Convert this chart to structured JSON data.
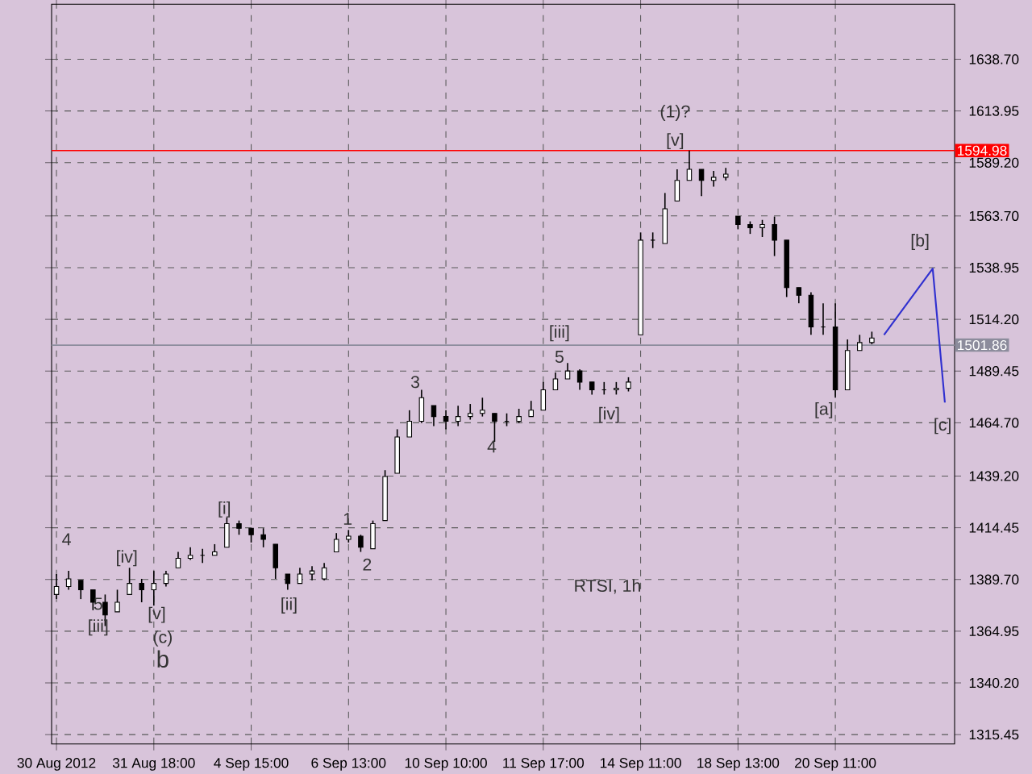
{
  "chart_data": {
    "type": "candlestick",
    "categories": [
      "30 Aug 2012",
      null,
      null,
      null,
      null,
      null,
      null,
      null,
      "31 Aug 18:00",
      null,
      null,
      null,
      null,
      null,
      null,
      null,
      "4 Sep 15:00",
      null,
      null,
      null,
      null,
      null,
      null,
      null,
      "6 Sep 13:00",
      null,
      null,
      null,
      null,
      null,
      null,
      null,
      "10 Sep 10:00",
      null,
      null,
      null,
      null,
      null,
      null,
      null,
      "11 Sep 17:00",
      null,
      null,
      null,
      null,
      null,
      null,
      null,
      "14 Sep 11:00",
      null,
      null,
      null,
      null,
      null,
      null,
      null,
      "18 Sep 13:00",
      null,
      null,
      null,
      null,
      null,
      null,
      null,
      "20 Sep 11:00",
      null,
      null,
      null,
      null,
      null,
      null,
      null,
      null,
      null
    ],
    "ohlc": [
      [
        1382.5,
        1392.3,
        1380.3,
        1386.3
      ],
      [
        1386.3,
        1393.8,
        1384.8,
        1390.0
      ],
      [
        1389.3,
        1389.3,
        1380.3,
        1384.8
      ],
      [
        1384.8,
        1384.8,
        1375.0,
        1378.8
      ],
      [
        1378.8,
        1382.5,
        1367.4,
        1372.7
      ],
      [
        1374.2,
        1384.8,
        1374.2,
        1378.8
      ],
      [
        1382.5,
        1395.3,
        1382.5,
        1387.8
      ],
      [
        1387.8,
        1390.0,
        1378.8,
        1384.8
      ],
      [
        1384.8,
        1393.8,
        1377.2,
        1387.8
      ],
      [
        1387.8,
        1393.8,
        1386.3,
        1392.3
      ],
      [
        1395.3,
        1402.9,
        1395.3,
        1399.8
      ],
      [
        1399.8,
        1405.1,
        1399.1,
        1401.3
      ],
      [
        1401.3,
        1404.4,
        1397.6,
        1401.3
      ],
      [
        1401.3,
        1406.6,
        1401.3,
        1402.9
      ],
      [
        1405.1,
        1419.4,
        1405.1,
        1416.4
      ],
      [
        1416.4,
        1417.9,
        1411.1,
        1414.2
      ],
      [
        1414.2,
        1414.2,
        1407.4,
        1411.1
      ],
      [
        1411.1,
        1414.2,
        1405.1,
        1408.9
      ],
      [
        1406.6,
        1406.6,
        1390.0,
        1395.3
      ],
      [
        1392.3,
        1392.3,
        1384.8,
        1387.8
      ],
      [
        1387.8,
        1395.3,
        1387.8,
        1392.3
      ],
      [
        1392.3,
        1396.1,
        1389.3,
        1393.8
      ],
      [
        1390.0,
        1397.6,
        1389.3,
        1395.3
      ],
      [
        1402.9,
        1411.9,
        1402.9,
        1408.9
      ],
      [
        1408.9,
        1413.4,
        1407.4,
        1410.4
      ],
      [
        1410.4,
        1411.1,
        1402.9,
        1405.1
      ],
      [
        1404.4,
        1417.9,
        1404.4,
        1416.4
      ],
      [
        1417.9,
        1442.0,
        1417.9,
        1439.0
      ],
      [
        1440.5,
        1461.6,
        1440.5,
        1457.9
      ],
      [
        1457.9,
        1470.7,
        1457.9,
        1465.4
      ],
      [
        1465.4,
        1480.5,
        1464.6,
        1476.7
      ],
      [
        1472.9,
        1472.9,
        1463.1,
        1467.7
      ],
      [
        1467.7,
        1470.7,
        1461.6,
        1465.4
      ],
      [
        1465.4,
        1472.9,
        1463.1,
        1467.7
      ],
      [
        1467.7,
        1473.7,
        1466.2,
        1469.2
      ],
      [
        1469.2,
        1476.7,
        1467.7,
        1470.7
      ],
      [
        1469.2,
        1469.2,
        1455.6,
        1465.4
      ],
      [
        1465.4,
        1469.2,
        1463.1,
        1465.4
      ],
      [
        1465.4,
        1471.4,
        1464.6,
        1467.7
      ],
      [
        1467.7,
        1475.2,
        1467.7,
        1470.7
      ],
      [
        1470.7,
        1484.2,
        1470.7,
        1480.5
      ],
      [
        1480.5,
        1488.8,
        1480.5,
        1485.7
      ],
      [
        1485.7,
        1493.3,
        1485.7,
        1489.5
      ],
      [
        1489.5,
        1490.3,
        1480.5,
        1484.2
      ],
      [
        1484.2,
        1484.2,
        1478.2,
        1480.5
      ],
      [
        1480.5,
        1484.2,
        1478.2,
        1480.5
      ],
      [
        1480.5,
        1484.2,
        1478.2,
        1481.2
      ],
      [
        1481.2,
        1486.5,
        1479.7,
        1484.2
      ],
      [
        1506.8,
        1555.8,
        1506.8,
        1552.1
      ],
      [
        1552.1,
        1555.8,
        1548.3,
        1552.1
      ],
      [
        1550.5,
        1574.7,
        1550.5,
        1567.1
      ],
      [
        1570.9,
        1586.0,
        1570.9,
        1580.7
      ],
      [
        1580.7,
        1595.0,
        1580.7,
        1586.0
      ],
      [
        1586.0,
        1586.0,
        1573.2,
        1580.7
      ],
      [
        1580.7,
        1585.2,
        1577.7,
        1582.2
      ],
      [
        1582.2,
        1586.7,
        1580.7,
        1583.7
      ],
      [
        1563.4,
        1563.4,
        1557.3,
        1559.6
      ],
      [
        1559.6,
        1561.1,
        1555.1,
        1558.1
      ],
      [
        1558.1,
        1561.8,
        1553.6,
        1559.6
      ],
      [
        1559.6,
        1563.4,
        1544.5,
        1552.1
      ],
      [
        1552.1,
        1552.1,
        1524.9,
        1529.4
      ],
      [
        1529.4,
        1529.4,
        1521.9,
        1525.7
      ],
      [
        1525.7,
        1527.2,
        1506.8,
        1510.6
      ],
      [
        1510.6,
        1521.9,
        1506.8,
        1510.6
      ],
      [
        1510.6,
        1521.9,
        1476.7,
        1480.5
      ],
      [
        1480.5,
        1504.6,
        1480.5,
        1499.3
      ],
      [
        1499.3,
        1506.8,
        1499.3,
        1503.1
      ],
      [
        1503.1,
        1508.3,
        1502.3,
        1505.3
      ],
      null,
      null,
      null,
      null,
      null,
      null
    ],
    "color": "#000000",
    "series": [
      {
        "type": "line",
        "values": [
          null,
          null,
          null,
          null,
          null,
          null,
          null,
          null,
          null,
          null,
          null,
          null,
          null,
          null,
          null,
          null,
          null,
          null,
          null,
          null,
          null,
          null,
          null,
          null,
          null,
          null,
          null,
          null,
          null,
          null,
          null,
          null,
          null,
          null,
          null,
          null,
          null,
          null,
          null,
          null,
          null,
          null,
          null,
          null,
          null,
          null,
          null,
          null,
          null,
          null,
          null,
          null,
          null,
          null,
          null,
          null,
          null,
          null,
          null,
          null,
          null,
          null,
          null,
          null,
          null,
          null,
          null,
          null,
          1506.8,
          null,
          null,
          null,
          1538.5,
          1474.4
        ],
        "color": "#3030d0"
      }
    ],
    "ylim": [
      1311,
      1665
    ],
    "yticks": [
      {
        "value": 1315.45,
        "label": "1315.45"
      },
      {
        "value": 1340.2,
        "label": "1340.20"
      },
      {
        "value": 1364.95,
        "label": "1364.95"
      },
      {
        "value": 1389.7,
        "label": "1389.70"
      },
      {
        "value": 1414.45,
        "label": "1414.45"
      },
      {
        "value": 1439.2,
        "label": "1439.20"
      },
      {
        "value": 1464.7,
        "label": "1464.70"
      },
      {
        "value": 1489.45,
        "label": "1489.45"
      },
      {
        "value": 1514.2,
        "label": "1514.20"
      },
      {
        "value": 1538.95,
        "label": "1538.95"
      },
      {
        "value": 1563.7,
        "label": "1563.70"
      },
      {
        "value": 1589.2,
        "label": "1589.20"
      },
      {
        "value": 1613.95,
        "label": "1613.95"
      },
      {
        "value": 1638.7,
        "label": "1638.70"
      }
    ],
    "ref_lines": [
      {
        "axis": "y",
        "value": 1594.98,
        "label": "1594.98",
        "color": "#ff0000"
      },
      {
        "axis": "y",
        "value": 1501.86,
        "label": "1501.86",
        "color": "#8c8c9c"
      }
    ],
    "grid": true,
    "annotations": [
      "RTSI, 1h",
      "4",
      "5",
      "[iii]",
      "[iv]",
      "[v]",
      "(c)",
      "b",
      "[i]",
      "[ii]",
      "1",
      "2",
      "3",
      "4",
      "5",
      "[iii]",
      "[iv]",
      "[v]",
      "(1)?",
      "[a]",
      "[b]",
      "[c]"
    ]
  }
}
